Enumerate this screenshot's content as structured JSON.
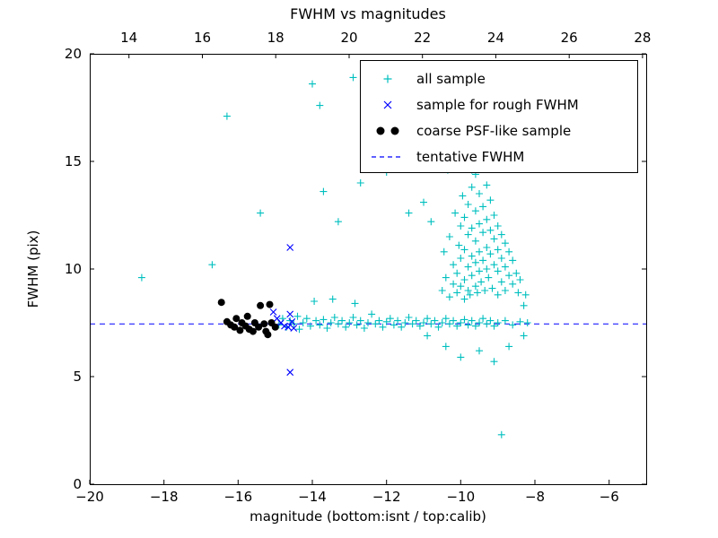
{
  "chart_data": {
    "type": "scatter",
    "title": "FWHM vs magnitudes",
    "xlabel": "magnitude (bottom:isnt / top:calib)",
    "ylabel": "FWHM (pix)",
    "xlim": [
      -20,
      -5
    ],
    "ylim": [
      0,
      20
    ],
    "grid": false,
    "legend_position": "upper right",
    "x_ticks": {
      "values": [
        -20,
        -18,
        -16,
        -14,
        -12,
        -10,
        -8,
        -6
      ],
      "labels": [
        "−20",
        "−18",
        "−16",
        "−14",
        "−12",
        "−10",
        "−8",
        "−6"
      ]
    },
    "y_ticks": {
      "values": [
        0,
        5,
        10,
        15,
        20
      ],
      "labels": [
        "0",
        "5",
        "10",
        "15",
        "20"
      ]
    },
    "top_axis": {
      "lim": [
        12.93,
        28.1
      ],
      "values": [
        14,
        16,
        18,
        20,
        22,
        24,
        26,
        28
      ],
      "labels": [
        "14",
        "16",
        "18",
        "20",
        "22",
        "24",
        "26",
        "28"
      ]
    },
    "series": [
      {
        "name": "all-sample",
        "label": "all sample",
        "marker": "plus",
        "color": "#00bfbf",
        "points": [
          [
            -14.9,
            7.4
          ],
          [
            -14.8,
            7.7
          ],
          [
            -14.7,
            7.3
          ],
          [
            -14.6,
            7.6
          ],
          [
            -14.5,
            7.45
          ],
          [
            -14.4,
            7.8
          ],
          [
            -14.35,
            7.2
          ],
          [
            -14.25,
            7.5
          ],
          [
            -14.15,
            7.7
          ],
          [
            -14.05,
            7.35
          ],
          [
            -13.95,
            8.5
          ],
          [
            -13.9,
            7.6
          ],
          [
            -13.8,
            7.4
          ],
          [
            -13.7,
            7.65
          ],
          [
            -13.6,
            7.25
          ],
          [
            -13.5,
            7.5
          ],
          [
            -13.45,
            8.6
          ],
          [
            -13.4,
            7.75
          ],
          [
            -13.3,
            7.45
          ],
          [
            -13.2,
            7.6
          ],
          [
            -13.1,
            7.3
          ],
          [
            -13.0,
            7.5
          ],
          [
            -12.9,
            7.75
          ],
          [
            -12.85,
            8.4
          ],
          [
            -12.8,
            7.4
          ],
          [
            -12.7,
            7.6
          ],
          [
            -12.6,
            7.25
          ],
          [
            -12.5,
            7.5
          ],
          [
            -12.4,
            7.9
          ],
          [
            -12.3,
            7.45
          ],
          [
            -12.2,
            7.6
          ],
          [
            -12.1,
            7.3
          ],
          [
            -12.0,
            7.55
          ],
          [
            -11.9,
            7.7
          ],
          [
            -11.8,
            7.4
          ],
          [
            -11.7,
            7.6
          ],
          [
            -11.6,
            7.3
          ],
          [
            -11.5,
            7.5
          ],
          [
            -11.4,
            7.75
          ],
          [
            -11.3,
            7.45
          ],
          [
            -11.2,
            7.6
          ],
          [
            -11.1,
            7.35
          ],
          [
            -11.0,
            7.5
          ],
          [
            -10.9,
            7.7
          ],
          [
            -10.8,
            7.45
          ],
          [
            -10.7,
            7.6
          ],
          [
            -10.6,
            7.3
          ],
          [
            -10.5,
            7.5
          ],
          [
            -10.4,
            7.7
          ],
          [
            -10.3,
            7.45
          ],
          [
            -10.2,
            7.6
          ],
          [
            -10.1,
            7.35
          ],
          [
            -10.0,
            7.5
          ],
          [
            -9.9,
            7.65
          ],
          [
            -9.8,
            7.4
          ],
          [
            -9.7,
            7.6
          ],
          [
            -9.6,
            7.35
          ],
          [
            -9.5,
            7.5
          ],
          [
            -9.4,
            7.7
          ],
          [
            -9.3,
            7.45
          ],
          [
            -9.2,
            7.6
          ],
          [
            -9.1,
            7.35
          ],
          [
            -9.0,
            7.5
          ],
          [
            -8.8,
            7.6
          ],
          [
            -8.6,
            7.4
          ],
          [
            -8.4,
            7.55
          ],
          [
            -8.2,
            7.5
          ],
          [
            -10.5,
            9.0
          ],
          [
            -10.45,
            10.8
          ],
          [
            -10.4,
            9.6
          ],
          [
            -10.35,
            14.6
          ],
          [
            -10.3,
            8.7
          ],
          [
            -10.3,
            11.5
          ],
          [
            -10.2,
            9.3
          ],
          [
            -10.2,
            10.2
          ],
          [
            -10.15,
            12.6
          ],
          [
            -10.1,
            8.9
          ],
          [
            -10.1,
            9.8
          ],
          [
            -10.05,
            11.1
          ],
          [
            -10.0,
            9.2
          ],
          [
            -10.0,
            10.5
          ],
          [
            -10.0,
            12.0
          ],
          [
            -9.95,
            13.4
          ],
          [
            -9.9,
            8.6
          ],
          [
            -9.9,
            9.5
          ],
          [
            -9.9,
            10.9
          ],
          [
            -9.9,
            12.4
          ],
          [
            -9.9,
            15.2
          ],
          [
            -9.85,
            14.9
          ],
          [
            -9.8,
            9.0
          ],
          [
            -9.8,
            10.1
          ],
          [
            -9.8,
            11.6
          ],
          [
            -9.8,
            13.0
          ],
          [
            -9.75,
            8.8
          ],
          [
            -9.7,
            9.7
          ],
          [
            -9.7,
            10.6
          ],
          [
            -9.7,
            11.9
          ],
          [
            -9.7,
            13.8
          ],
          [
            -9.7,
            14.6
          ],
          [
            -9.6,
            9.2
          ],
          [
            -9.6,
            10.3
          ],
          [
            -9.6,
            11.3
          ],
          [
            -9.6,
            12.7
          ],
          [
            -9.6,
            14.4
          ],
          [
            -9.55,
            8.9
          ],
          [
            -9.5,
            9.9
          ],
          [
            -9.5,
            10.8
          ],
          [
            -9.5,
            12.1
          ],
          [
            -9.5,
            13.5
          ],
          [
            -9.45,
            9.4
          ],
          [
            -9.4,
            10.4
          ],
          [
            -9.4,
            11.7
          ],
          [
            -9.4,
            12.9
          ],
          [
            -9.4,
            15.0
          ],
          [
            -9.35,
            9.0
          ],
          [
            -9.3,
            10.0
          ],
          [
            -9.3,
            11.0
          ],
          [
            -9.3,
            12.3
          ],
          [
            -9.3,
            13.9
          ],
          [
            -9.25,
            9.6
          ],
          [
            -9.2,
            10.7
          ],
          [
            -9.2,
            11.8
          ],
          [
            -9.2,
            13.2
          ],
          [
            -9.15,
            9.1
          ],
          [
            -9.1,
            10.2
          ],
          [
            -9.1,
            11.4
          ],
          [
            -9.1,
            12.5
          ],
          [
            -9.0,
            8.8
          ],
          [
            -9.0,
            9.9
          ],
          [
            -9.0,
            10.9
          ],
          [
            -9.0,
            12.0
          ],
          [
            -8.9,
            9.4
          ],
          [
            -8.9,
            10.5
          ],
          [
            -8.9,
            11.6
          ],
          [
            -8.8,
            9.0
          ],
          [
            -8.8,
            10.1
          ],
          [
            -8.8,
            11.2
          ],
          [
            -8.7,
            9.7
          ],
          [
            -8.7,
            10.8
          ],
          [
            -8.6,
            9.3
          ],
          [
            -8.6,
            10.4
          ],
          [
            -8.5,
            9.8
          ],
          [
            -8.45,
            8.9
          ],
          [
            -8.4,
            9.5
          ],
          [
            -8.3,
            8.3
          ],
          [
            -8.25,
            8.8
          ],
          [
            -18.6,
            9.6
          ],
          [
            -16.7,
            10.2
          ],
          [
            -16.3,
            17.1
          ],
          [
            -15.4,
            12.6
          ],
          [
            -14.0,
            18.6
          ],
          [
            -13.8,
            17.6
          ],
          [
            -12.9,
            18.9
          ],
          [
            -12.0,
            19.3
          ],
          [
            -11.2,
            18.7
          ],
          [
            -10.7,
            19.2
          ],
          [
            -13.7,
            13.6
          ],
          [
            -13.3,
            12.2
          ],
          [
            -12.7,
            14.0
          ],
          [
            -12.0,
            14.5
          ],
          [
            -11.4,
            12.6
          ],
          [
            -11.0,
            13.1
          ],
          [
            -10.8,
            12.2
          ],
          [
            -10.9,
            6.9
          ],
          [
            -10.4,
            6.4
          ],
          [
            -10.0,
            5.9
          ],
          [
            -9.5,
            6.2
          ],
          [
            -9.1,
            5.7
          ],
          [
            -8.7,
            6.4
          ],
          [
            -8.9,
            2.3
          ],
          [
            -8.3,
            6.9
          ]
        ]
      },
      {
        "name": "rough-fwhm-sample",
        "label": "sample for rough FWHM",
        "marker": "x",
        "color": "#0000ff",
        "points": [
          [
            -15.05,
            8.0
          ],
          [
            -14.95,
            7.7
          ],
          [
            -14.85,
            7.5
          ],
          [
            -14.75,
            7.35
          ],
          [
            -14.65,
            7.3
          ],
          [
            -14.55,
            7.55
          ],
          [
            -14.6,
            7.9
          ],
          [
            -14.5,
            7.25
          ],
          [
            -14.6,
            11.0
          ],
          [
            -14.6,
            5.2
          ]
        ]
      },
      {
        "name": "psf-like-sample",
        "label": "coarse PSF-like sample",
        "marker": "circle",
        "color": "#000000",
        "points": [
          [
            -16.45,
            8.45
          ],
          [
            -16.3,
            7.55
          ],
          [
            -16.2,
            7.4
          ],
          [
            -16.1,
            7.3
          ],
          [
            -16.05,
            7.7
          ],
          [
            -15.95,
            7.15
          ],
          [
            -15.9,
            7.5
          ],
          [
            -15.8,
            7.35
          ],
          [
            -15.75,
            7.8
          ],
          [
            -15.7,
            7.2
          ],
          [
            -15.6,
            7.1
          ],
          [
            -15.55,
            7.5
          ],
          [
            -15.45,
            7.3
          ],
          [
            -15.4,
            8.3
          ],
          [
            -15.3,
            7.45
          ],
          [
            -15.25,
            7.1
          ],
          [
            -15.15,
            8.35
          ],
          [
            -15.1,
            7.5
          ],
          [
            -15.2,
            6.95
          ],
          [
            -15.0,
            7.3
          ]
        ]
      }
    ],
    "ref_line": {
      "label": "tentative FWHM",
      "style": "dashed",
      "color": "#0000ff",
      "y": 7.45
    }
  }
}
